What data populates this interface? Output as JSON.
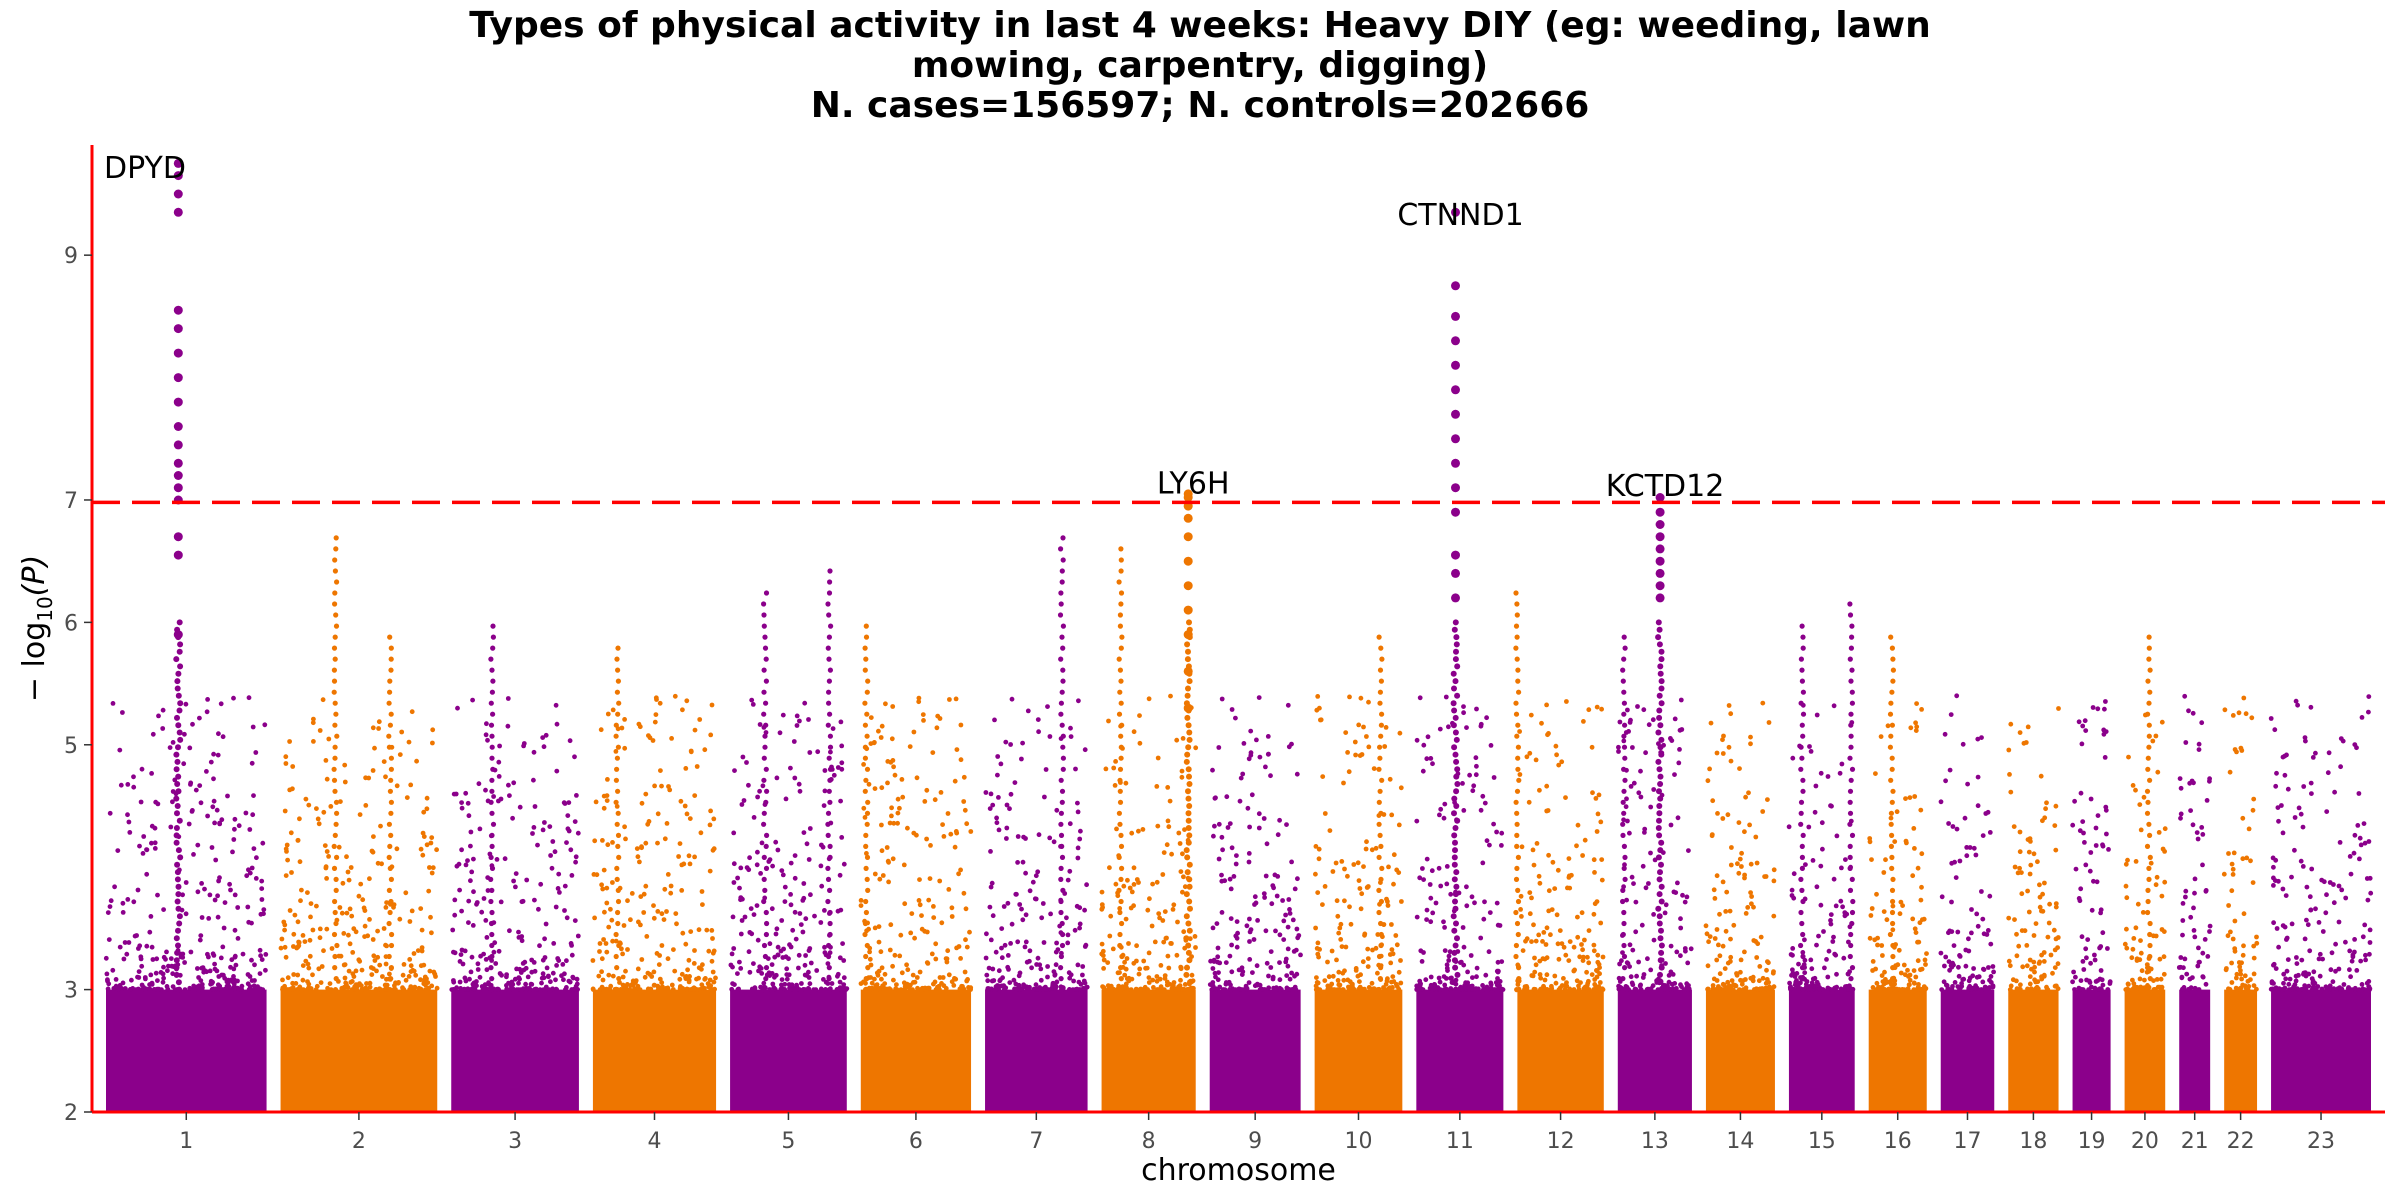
{
  "chart_data": {
    "type": "scatter",
    "title_lines": [
      "Types of physical activity in last 4 weeks: Heavy DIY (eg: weeding, lawn",
      "mowing, carpentry, digging)",
      "N. cases=156597; N. controls=202666"
    ],
    "xlabel": "chromosome",
    "ylabel_main": "− log",
    "ylabel_sub": "10",
    "ylabel_arg": "(P)",
    "ylim": [
      2,
      9.9
    ],
    "yticks": [
      2,
      3,
      5,
      6,
      7,
      9
    ],
    "significance_line": 6.98,
    "colors": {
      "odd": "#8B008B",
      "even": "#EE7600",
      "threshold": "#FF0000"
    },
    "chromosomes": [
      {
        "label": "1",
        "length": 249
      },
      {
        "label": "2",
        "length": 243
      },
      {
        "label": "3",
        "length": 198
      },
      {
        "label": "4",
        "length": 191
      },
      {
        "label": "5",
        "length": 181
      },
      {
        "label": "6",
        "length": 171
      },
      {
        "label": "7",
        "length": 159
      },
      {
        "label": "8",
        "length": 146
      },
      {
        "label": "9",
        "length": 141
      },
      {
        "label": "10",
        "length": 136
      },
      {
        "label": "11",
        "length": 135
      },
      {
        "label": "12",
        "length": 134
      },
      {
        "label": "13",
        "length": 115
      },
      {
        "label": "14",
        "length": 107
      },
      {
        "label": "15",
        "length": 102
      },
      {
        "label": "16",
        "length": 90
      },
      {
        "label": "17",
        "length": 83
      },
      {
        "label": "18",
        "length": 78
      },
      {
        "label": "19",
        "length": 59
      },
      {
        "label": "20",
        "length": 63
      },
      {
        "label": "21",
        "length": 48
      },
      {
        "label": "22",
        "length": 51
      },
      {
        "label": "23",
        "length": 155
      }
    ],
    "peaks": [
      {
        "chr": "1",
        "pos": 0.45,
        "max": 9.75,
        "cluster": [
          9.65,
          9.5,
          9.35,
          8.55,
          8.4,
          8.2,
          8.0,
          7.8,
          7.6,
          7.45,
          7.3,
          7.2,
          7.1,
          7.0,
          6.7,
          6.55,
          5.9
        ]
      },
      {
        "chr": "8",
        "pos": 0.92,
        "max": 7.05,
        "cluster": [
          7.02,
          6.95,
          6.85,
          6.7,
          6.5,
          6.3,
          6.1,
          5.9,
          5.6,
          5.3
        ]
      },
      {
        "chr": "11",
        "pos": 0.45,
        "max": 9.35,
        "cluster": [
          8.75,
          8.5,
          8.3,
          8.1,
          7.9,
          7.7,
          7.5,
          7.3,
          7.1,
          6.9,
          6.55,
          6.4,
          6.2
        ]
      },
      {
        "chr": "13",
        "pos": 0.57,
        "max": 7.02,
        "cluster": [
          6.9,
          6.8,
          6.7,
          6.6,
          6.5,
          6.4,
          6.3,
          6.2
        ]
      }
    ],
    "annotations": [
      {
        "chr": "1",
        "pos": 0.45,
        "label": "DPYD",
        "y": 9.75
      },
      {
        "chr": "8",
        "pos": 0.92,
        "label": "LY6H",
        "y": 7.1
      },
      {
        "chr": "11",
        "pos": 0.45,
        "label": "CTNND1",
        "y": 9.45
      },
      {
        "chr": "13",
        "pos": 0.57,
        "label": "KCTD12",
        "y": 7.08
      }
    ],
    "minor_peaks": [
      {
        "chr": "2",
        "pos": 0.35,
        "max": 6.75
      },
      {
        "chr": "2",
        "pos": 0.7,
        "max": 5.9
      },
      {
        "chr": "3",
        "pos": 0.32,
        "max": 6.0
      },
      {
        "chr": "4",
        "pos": 0.2,
        "max": 5.8
      },
      {
        "chr": "5",
        "pos": 0.3,
        "max": 6.3
      },
      {
        "chr": "5",
        "pos": 0.85,
        "max": 6.5
      },
      {
        "chr": "6",
        "pos": 0.05,
        "max": 6.0
      },
      {
        "chr": "7",
        "pos": 0.75,
        "max": 6.75
      },
      {
        "chr": "8",
        "pos": 0.2,
        "max": 6.6
      },
      {
        "chr": "10",
        "pos": 0.75,
        "max": 5.95
      },
      {
        "chr": "12",
        "pos": 0.0,
        "max": 6.25
      },
      {
        "chr": "13",
        "pos": 0.08,
        "max": 5.9
      },
      {
        "chr": "15",
        "pos": 0.2,
        "max": 6.0
      },
      {
        "chr": "15",
        "pos": 0.95,
        "max": 6.2
      },
      {
        "chr": "16",
        "pos": 0.4,
        "max": 5.95
      },
      {
        "chr": "20",
        "pos": 0.6,
        "max": 5.95
      }
    ]
  }
}
